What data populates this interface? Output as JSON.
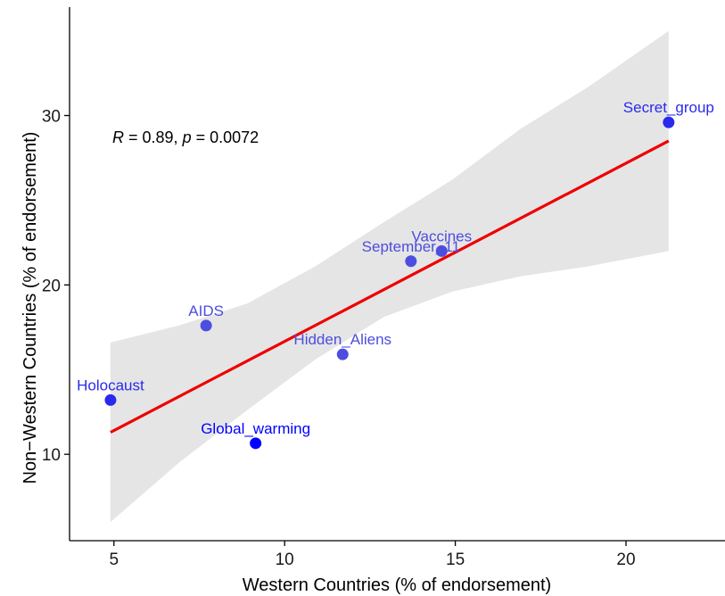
{
  "chart_data": {
    "type": "scatter",
    "xlabel": "Western Countries (% of endorsement)",
    "ylabel": "Non−Western Countries (% of endorsement)",
    "xlim": [
      3.7,
      22.9
    ],
    "ylim": [
      4.9,
      36.4
    ],
    "x_ticks": [
      5,
      10,
      15,
      20
    ],
    "y_ticks": [
      10,
      20,
      30
    ],
    "grid": false,
    "points": [
      {
        "label": "Holocaust",
        "x": 4.9,
        "y": 13.2,
        "color": "#2a2aee"
      },
      {
        "label": "AIDS",
        "x": 7.7,
        "y": 17.6,
        "color": "#4d4de0"
      },
      {
        "label": "Global_warming",
        "x": 9.15,
        "y": 10.65,
        "color": "#0000ff"
      },
      {
        "label": "Hidden_Aliens",
        "x": 11.7,
        "y": 15.9,
        "color": "#4d4de0"
      },
      {
        "label": "September_11",
        "x": 13.7,
        "y": 21.4,
        "color": "#4d4de0"
      },
      {
        "label": "Vaccines",
        "x": 14.6,
        "y": 22.0,
        "color": "#4d4de0"
      },
      {
        "label": "Secret_group",
        "x": 21.25,
        "y": 29.6,
        "color": "#2a2aee"
      }
    ],
    "regression": {
      "x": [
        4.9,
        21.25
      ],
      "y": [
        11.3,
        28.5
      ],
      "color": "#ee0000"
    },
    "confidence_band": {
      "x": [
        4.9,
        6.9,
        8.9,
        10.9,
        12.9,
        14.9,
        16.9,
        18.9,
        21.25
      ],
      "lower": [
        6.0,
        9.5,
        12.6,
        15.6,
        18.1,
        19.6,
        20.5,
        21.1,
        22.0
      ],
      "upper": [
        16.6,
        17.6,
        18.9,
        21.1,
        23.7,
        26.2,
        29.2,
        31.7,
        35.0
      ],
      "color": "#e5e5e5"
    },
    "annotation": {
      "r_symbol": "R",
      "r_text": " = 0.89, ",
      "p_symbol": "p",
      "p_text": " = 0.0072"
    }
  }
}
